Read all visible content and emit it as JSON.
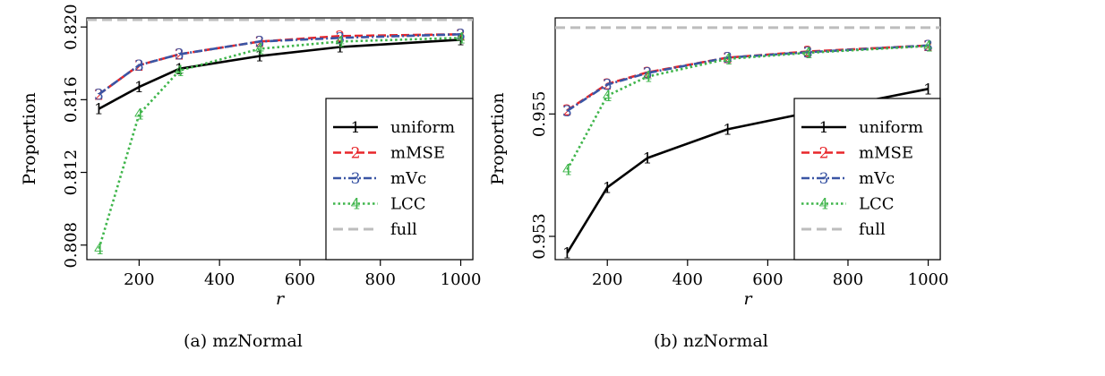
{
  "chart_data": [
    {
      "type": "line",
      "caption": "(a) mzNormal",
      "xlabel": "r",
      "ylabel": "Proportion",
      "xlim": [
        70,
        1030
      ],
      "ylim": [
        0.8072,
        0.8205
      ],
      "x_ticks": [
        200,
        400,
        600,
        800,
        1000
      ],
      "y_ticks": [
        0.808,
        0.812,
        0.816,
        0.82
      ],
      "x": [
        100,
        200,
        300,
        500,
        700,
        1000
      ],
      "series": [
        {
          "name": "uniform",
          "marker": "1",
          "color": "#000000",
          "dash": "solid",
          "values": [
            0.8155,
            0.8167,
            0.8177,
            0.8184,
            0.8189,
            0.8193
          ]
        },
        {
          "name": "mMSE",
          "marker": "2",
          "color": "#e8262a",
          "dash": "dashed",
          "values": [
            0.8163,
            0.8179,
            0.8185,
            0.8192,
            0.8195,
            0.8196
          ]
        },
        {
          "name": "mVc",
          "marker": "3",
          "color": "#3a55a4",
          "dash": "dotdash",
          "values": [
            0.8163,
            0.8179,
            0.8185,
            0.8192,
            0.8194,
            0.8196
          ]
        },
        {
          "name": "LCC",
          "marker": "4",
          "color": "#3fb54b",
          "dash": "dotted",
          "values": [
            0.8078,
            0.8152,
            0.8176,
            0.8188,
            0.8192,
            0.8194
          ]
        }
      ],
      "reference_line": {
        "name": "full",
        "value": 0.8204,
        "color": "#bdbdbd"
      },
      "legend_position": "bottom-right",
      "grid": false
    },
    {
      "type": "line",
      "caption": "(b) nzNormal",
      "xlabel": "r",
      "ylabel": "Proportion",
      "xlim": [
        70,
        1030
      ],
      "ylim": [
        0.95262,
        0.95657
      ],
      "x_ticks": [
        200,
        400,
        600,
        800,
        1000
      ],
      "y_ticks": [
        0.953,
        0.955
      ],
      "x": [
        100,
        200,
        300,
        500,
        700,
        1000
      ],
      "series": [
        {
          "name": "uniform",
          "marker": "1",
          "color": "#000000",
          "dash": "solid",
          "values": [
            0.95273,
            0.9538,
            0.95428,
            0.95475,
            0.95502,
            0.95541
          ]
        },
        {
          "name": "mMSE",
          "marker": "2",
          "color": "#e8262a",
          "dash": "dashed",
          "values": [
            0.95506,
            0.95549,
            0.95568,
            0.95592,
            0.95602,
            0.95612
          ]
        },
        {
          "name": "mVc",
          "marker": "3",
          "color": "#3a55a4",
          "dash": "dotdash",
          "values": [
            0.95505,
            0.95548,
            0.95567,
            0.95592,
            0.95601,
            0.95612
          ]
        },
        {
          "name": "LCC",
          "marker": "4",
          "color": "#3fb54b",
          "dash": "dotted",
          "values": [
            0.95409,
            0.9553,
            0.95561,
            0.9559,
            0.956,
            0.95611
          ]
        }
      ],
      "reference_line": {
        "name": "full",
        "value": 0.95641,
        "color": "#bdbdbd"
      },
      "legend_position": "bottom-right",
      "grid": false
    }
  ]
}
